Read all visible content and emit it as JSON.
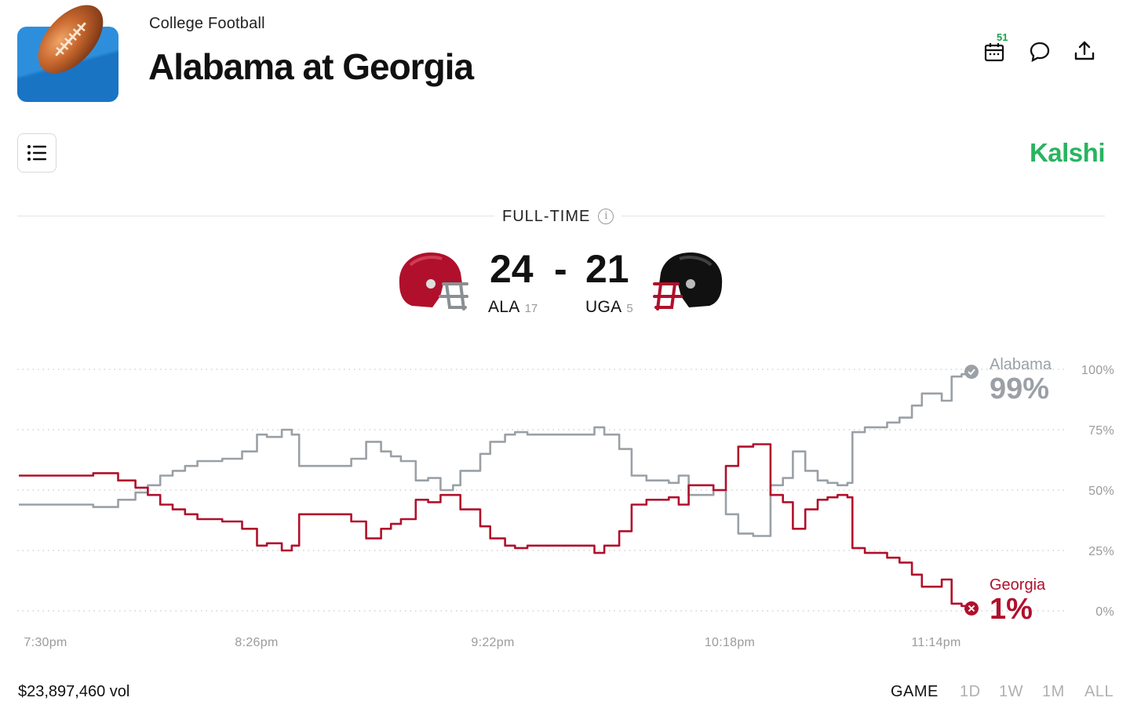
{
  "header": {
    "category": "College Football",
    "title": "Alabama at Georgia",
    "app_icon": "football-icon",
    "calendar_badge": "51",
    "actions": [
      "calendar-icon",
      "comment-icon",
      "share-icon"
    ]
  },
  "toolbar": {
    "menu_icon": "list-icon",
    "brand": "Kalshi",
    "brand_color": "#28b460"
  },
  "status": {
    "label": "FULL-TIME",
    "info_icon": "info-icon"
  },
  "score": {
    "home": {
      "abbr": "ALA",
      "rank": "17",
      "score": "24",
      "helmet_color": "#b0102c"
    },
    "separator": "-",
    "away": {
      "abbr": "UGA",
      "rank": "5",
      "score": "21",
      "helmet_color": "#111111"
    }
  },
  "chart_data": {
    "type": "line",
    "x_tick_labels": [
      "7:30pm",
      "8:26pm",
      "9:22pm",
      "10:18pm",
      "11:14pm"
    ],
    "y_tick_labels": [
      "100%",
      "75%",
      "50%",
      "25%",
      "0%"
    ],
    "ylim": [
      0,
      100
    ],
    "grid": true,
    "x_minutes_range": [
      0,
      232
    ],
    "series": [
      {
        "name": "Alabama",
        "final_label": "99%",
        "color": "#9aa0a6",
        "end_marker": "check",
        "points": [
          [
            0,
            44
          ],
          [
            10,
            44
          ],
          [
            20,
            44
          ],
          [
            30,
            43
          ],
          [
            35,
            43
          ],
          [
            40,
            46
          ],
          [
            47,
            49
          ],
          [
            52,
            52
          ],
          [
            57,
            56
          ],
          [
            62,
            58
          ],
          [
            67,
            60
          ],
          [
            72,
            62
          ],
          [
            78,
            62
          ],
          [
            82,
            63
          ],
          [
            90,
            66
          ],
          [
            96,
            73
          ],
          [
            100,
            72
          ],
          [
            106,
            75
          ],
          [
            110,
            73
          ],
          [
            113,
            60
          ],
          [
            122,
            60
          ],
          [
            128,
            60
          ],
          [
            134,
            63
          ],
          [
            140,
            70
          ],
          [
            146,
            66
          ],
          [
            150,
            64
          ],
          [
            154,
            62
          ],
          [
            160,
            54
          ],
          [
            165,
            55
          ],
          [
            170,
            50
          ],
          [
            175,
            52
          ],
          [
            178,
            58
          ],
          [
            186,
            65
          ],
          [
            190,
            70
          ],
          [
            196,
            73
          ],
          [
            200,
            74
          ],
          [
            205,
            73
          ],
          [
            212,
            73
          ],
          [
            220,
            73
          ],
          [
            226,
            73
          ],
          [
            232,
            76
          ],
          [
            236,
            73
          ],
          [
            242,
            67
          ],
          [
            247,
            56
          ],
          [
            253,
            54
          ],
          [
            258,
            54
          ],
          [
            262,
            53
          ],
          [
            266,
            56
          ],
          [
            270,
            48
          ],
          [
            275,
            48
          ],
          [
            280,
            50
          ],
          [
            285,
            40
          ],
          [
            290,
            32
          ],
          [
            296,
            31
          ],
          [
            300,
            31
          ],
          [
            303,
            52
          ],
          [
            308,
            55
          ],
          [
            312,
            66
          ],
          [
            317,
            58
          ],
          [
            322,
            54
          ],
          [
            326,
            53
          ],
          [
            330,
            52
          ],
          [
            334,
            53
          ],
          [
            336,
            74
          ],
          [
            341,
            76
          ],
          [
            346,
            76
          ],
          [
            350,
            78
          ],
          [
            355,
            80
          ],
          [
            360,
            85
          ],
          [
            364,
            90
          ],
          [
            368,
            90
          ],
          [
            372,
            87
          ],
          [
            376,
            97
          ],
          [
            380,
            98
          ],
          [
            384,
            99
          ]
        ]
      },
      {
        "name": "Georgia",
        "final_label": "1%",
        "color": "#b0102c",
        "end_marker": "cross",
        "points": [
          [
            0,
            56
          ],
          [
            10,
            56
          ],
          [
            20,
            56
          ],
          [
            30,
            57
          ],
          [
            35,
            57
          ],
          [
            40,
            54
          ],
          [
            47,
            51
          ],
          [
            52,
            48
          ],
          [
            57,
            44
          ],
          [
            62,
            42
          ],
          [
            67,
            40
          ],
          [
            72,
            38
          ],
          [
            78,
            38
          ],
          [
            82,
            37
          ],
          [
            90,
            34
          ],
          [
            96,
            27
          ],
          [
            100,
            28
          ],
          [
            106,
            25
          ],
          [
            110,
            27
          ],
          [
            113,
            40
          ],
          [
            122,
            40
          ],
          [
            128,
            40
          ],
          [
            134,
            37
          ],
          [
            140,
            30
          ],
          [
            146,
            34
          ],
          [
            150,
            36
          ],
          [
            154,
            38
          ],
          [
            160,
            46
          ],
          [
            165,
            45
          ],
          [
            170,
            48
          ],
          [
            175,
            48
          ],
          [
            178,
            42
          ],
          [
            186,
            35
          ],
          [
            190,
            30
          ],
          [
            196,
            27
          ],
          [
            200,
            26
          ],
          [
            205,
            27
          ],
          [
            212,
            27
          ],
          [
            220,
            27
          ],
          [
            226,
            27
          ],
          [
            232,
            24
          ],
          [
            236,
            27
          ],
          [
            242,
            33
          ],
          [
            247,
            44
          ],
          [
            253,
            46
          ],
          [
            258,
            46
          ],
          [
            262,
            47
          ],
          [
            266,
            44
          ],
          [
            270,
            52
          ],
          [
            275,
            52
          ],
          [
            280,
            50
          ],
          [
            285,
            60
          ],
          [
            290,
            68
          ],
          [
            296,
            69
          ],
          [
            300,
            69
          ],
          [
            303,
            48
          ],
          [
            308,
            45
          ],
          [
            312,
            34
          ],
          [
            317,
            42
          ],
          [
            322,
            46
          ],
          [
            326,
            47
          ],
          [
            330,
            48
          ],
          [
            334,
            47
          ],
          [
            336,
            26
          ],
          [
            341,
            24
          ],
          [
            346,
            24
          ],
          [
            350,
            22
          ],
          [
            355,
            20
          ],
          [
            360,
            15
          ],
          [
            364,
            10
          ],
          [
            368,
            10
          ],
          [
            372,
            13
          ],
          [
            376,
            3
          ],
          [
            380,
            2
          ],
          [
            384,
            1
          ]
        ]
      }
    ]
  },
  "footer": {
    "volume": "$23,897,460 vol",
    "ranges": [
      "GAME",
      "1D",
      "1W",
      "1M",
      "ALL"
    ],
    "active_range": "GAME"
  }
}
